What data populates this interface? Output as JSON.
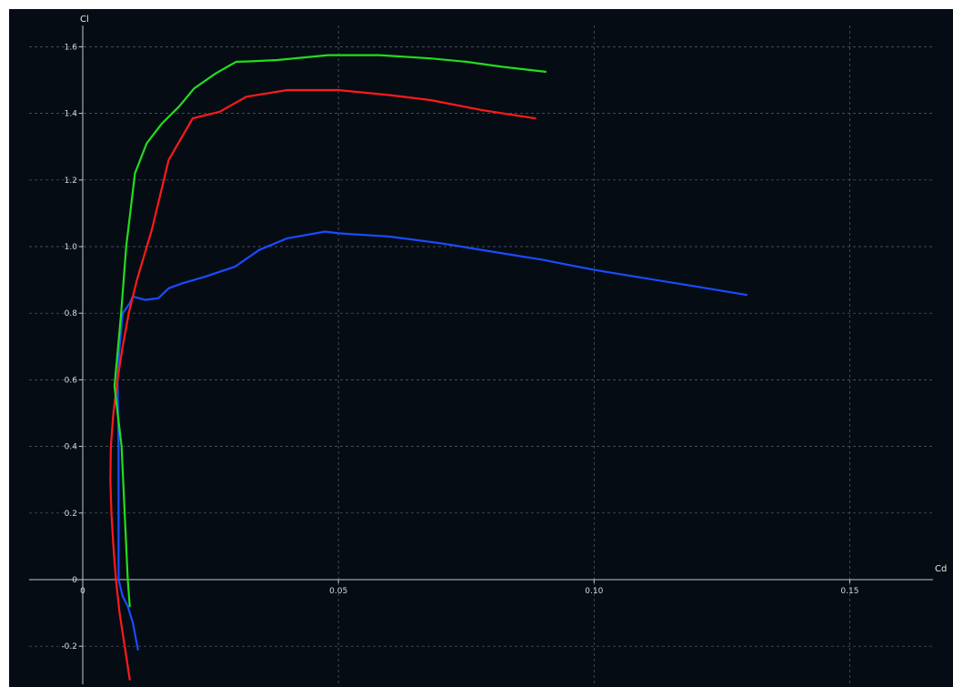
{
  "chart_data": {
    "type": "line",
    "xlabel": "Cd",
    "ylabel": "Cl",
    "xlim": [
      -0.01,
      0.165
    ],
    "ylim": [
      -0.28,
      1.67
    ],
    "xticks": [
      0,
      0.05,
      0.1,
      0.15
    ],
    "xtick_labels": [
      "0",
      "0.05",
      "0.10",
      "0.15"
    ],
    "yticks": [
      -0.2,
      0,
      0.2,
      0.4,
      0.6,
      0.8,
      1.0,
      1.2,
      1.4,
      1.6
    ],
    "ytick_labels": [
      "-0.2",
      "0",
      "0.2",
      "0.4",
      "0.6",
      "0.8",
      "1.0",
      "1.2",
      "1.4",
      "1.6"
    ],
    "grid": true,
    "background": "#050c14",
    "series": [
      {
        "color": "#1a4cff",
        "points": [
          [
            0.0108,
            -0.21
          ],
          [
            0.0098,
            -0.13
          ],
          [
            0.0088,
            -0.08
          ],
          [
            0.0078,
            -0.05
          ],
          [
            0.007,
            0.0
          ],
          [
            0.007,
            0.2
          ],
          [
            0.007,
            0.4
          ],
          [
            0.0068,
            0.6
          ],
          [
            0.0072,
            0.7
          ],
          [
            0.0078,
            0.8
          ],
          [
            0.0092,
            0.83
          ],
          [
            0.0098,
            0.85
          ],
          [
            0.0122,
            0.84
          ],
          [
            0.0148,
            0.845
          ],
          [
            0.0168,
            0.875
          ],
          [
            0.0195,
            0.89
          ],
          [
            0.024,
            0.91
          ],
          [
            0.0298,
            0.94
          ],
          [
            0.0345,
            0.99
          ],
          [
            0.04,
            1.025
          ],
          [
            0.0474,
            1.045
          ],
          [
            0.05,
            1.04
          ],
          [
            0.055,
            1.035
          ],
          [
            0.06,
            1.03
          ],
          [
            0.07,
            1.01
          ],
          [
            0.08,
            0.985
          ],
          [
            0.09,
            0.96
          ],
          [
            0.1,
            0.93
          ],
          [
            0.11,
            0.905
          ],
          [
            0.12,
            0.88
          ],
          [
            0.1298,
            0.855
          ]
        ]
      },
      {
        "color": "#ff1a1a",
        "points": [
          [
            0.0092,
            -0.3
          ],
          [
            0.0082,
            -0.2
          ],
          [
            0.0072,
            -0.1
          ],
          [
            0.0065,
            0.0
          ],
          [
            0.006,
            0.1
          ],
          [
            0.0056,
            0.2
          ],
          [
            0.0054,
            0.3
          ],
          [
            0.0055,
            0.4
          ],
          [
            0.006,
            0.5
          ],
          [
            0.0068,
            0.6
          ],
          [
            0.0078,
            0.7
          ],
          [
            0.009,
            0.8
          ],
          [
            0.0106,
            0.9
          ],
          [
            0.0135,
            1.05
          ],
          [
            0.0168,
            1.26
          ],
          [
            0.0215,
            1.385
          ],
          [
            0.0268,
            1.405
          ],
          [
            0.032,
            1.45
          ],
          [
            0.04,
            1.47
          ],
          [
            0.05,
            1.47
          ],
          [
            0.06,
            1.455
          ],
          [
            0.068,
            1.44
          ],
          [
            0.078,
            1.41
          ],
          [
            0.0885,
            1.385
          ]
        ]
      },
      {
        "color": "#22dd1a",
        "points": [
          [
            0.0092,
            -0.08
          ],
          [
            0.0088,
            0.0
          ],
          [
            0.0082,
            0.2
          ],
          [
            0.0076,
            0.4
          ],
          [
            0.0062,
            0.58
          ],
          [
            0.0075,
            0.8
          ],
          [
            0.0085,
            1.0
          ],
          [
            0.0102,
            1.22
          ],
          [
            0.0125,
            1.31
          ],
          [
            0.0155,
            1.37
          ],
          [
            0.0188,
            1.42
          ],
          [
            0.0218,
            1.475
          ],
          [
            0.026,
            1.52
          ],
          [
            0.03,
            1.555
          ],
          [
            0.0325,
            1.556
          ],
          [
            0.038,
            1.56
          ],
          [
            0.048,
            1.575
          ],
          [
            0.058,
            1.575
          ],
          [
            0.068,
            1.565
          ],
          [
            0.075,
            1.555
          ],
          [
            0.082,
            1.54
          ],
          [
            0.0905,
            1.525
          ]
        ]
      }
    ]
  }
}
